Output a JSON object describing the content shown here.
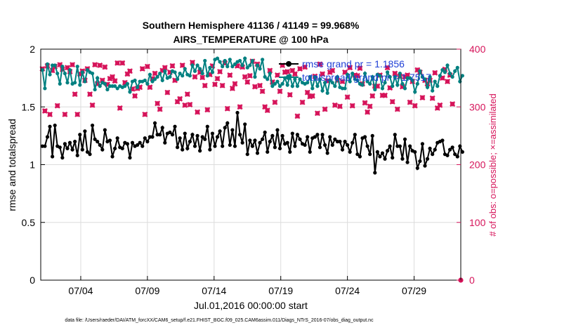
{
  "chart_data": {
    "type": "line",
    "title": "Southern Hemisphere 41136 / 41149 = 99.968%",
    "subtitle": "AIRS_TEMPERATURE @ 100 hPa",
    "xlabel": "Jul.01,2016 00:00:00 start",
    "ylabel": "rmse and totalspread",
    "y2label": "# of obs: o=possible; ×=assimilated",
    "footnote": "data file: /Users/raeder/DAI/ATM_forcXX/CAM6_setup/f.e21.FHIST_BGC.f09_025.CAM6assim.011/Diags_NTrS_2016-07/obs_diag_output.nc",
    "xlim": [
      1,
      32.5
    ],
    "ylim": [
      0,
      2
    ],
    "y2lim": [
      0,
      400
    ],
    "xticks": [
      4,
      9,
      14,
      19,
      24,
      29
    ],
    "xtick_labels": [
      "07/04",
      "07/09",
      "07/14",
      "07/19",
      "07/24",
      "07/29"
    ],
    "yticks": [
      0,
      0.5,
      1,
      1.5,
      2
    ],
    "ytick_labels": [
      "0",
      "0.5",
      "1",
      "1.5",
      "2"
    ],
    "y2ticks": [
      0,
      100,
      200,
      300,
      400
    ],
    "y2tick_labels": [
      "0",
      "100",
      "200",
      "300",
      "400"
    ],
    "grid": true,
    "legend_position": "top-right",
    "colors": {
      "rmse": "#000000",
      "spread": "#008080",
      "obs": "#d6145a",
      "legend_text": "#1f3fd6"
    },
    "series": [
      {
        "name": "rmse grand pr = 1.1856",
        "axis": "left",
        "values": [
          1.16,
          1.16,
          1.24,
          1.33,
          1.07,
          1.34,
          1.16,
          1.15,
          1.06,
          1.18,
          1.14,
          1.19,
          1.13,
          1.2,
          1.08,
          1.26,
          1.13,
          1.29,
          1.11,
          1.09,
          1.34,
          1.22,
          1.2,
          1.17,
          1.13,
          1.3,
          1.2,
          1.21,
          1.07,
          1.14,
          1.23,
          1.15,
          1.14,
          1.19,
          1.18,
          1.06,
          1.19,
          1.16,
          1.17,
          1.19,
          1.16,
          1.23,
          1.2,
          1.24,
          1.24,
          1.36,
          1.26,
          1.26,
          1.32,
          1.19,
          1.27,
          1.28,
          1.26,
          1.33,
          1.15,
          1.23,
          1.13,
          1.27,
          1.14,
          1.2,
          1.26,
          1.16,
          1.25,
          1.12,
          1.24,
          1.22,
          1.33,
          1.13,
          1.27,
          1.16,
          1.24,
          1.29,
          1.16,
          1.32,
          1.36,
          1.17,
          1.3,
          1.16,
          1.45,
          1.26,
          1.19,
          1.35,
          1.09,
          1.21,
          1.16,
          1.21,
          1.1,
          1.19,
          1.22,
          1.28,
          1.11,
          1.2,
          1.25,
          1.15,
          1.3,
          1.14,
          1.25,
          1.18,
          1.19,
          1.11,
          1.27,
          1.16,
          1.26,
          1.22,
          1.18,
          1.17,
          1.24,
          1.11,
          1.23,
          1.24,
          1.26,
          1.15,
          1.26,
          1.17,
          1.1,
          1.24,
          1.17,
          1.22,
          1.2,
          1.2,
          1.13,
          1.2,
          1.17,
          1.11,
          1.19,
          1.26,
          1.09,
          1.07,
          1.23,
          1.24,
          1.16,
          1.09,
          1.25,
          0.93,
          1.11,
          1.07,
          1.1,
          1.05,
          1.12,
          1.16,
          1.06,
          1.26,
          1.16,
          1.16,
          1.05,
          1.22,
          1.02,
          1.16,
          1.12,
          1.11,
          0.97,
          1.03,
          1.18,
          0.99,
          1.05,
          1.14,
          1.09,
          1.13,
          1.19,
          1.2,
          1.21,
          1.09,
          1.08,
          1.13,
          1.15,
          1.09,
          1.07,
          1.16,
          1.11
        ]
      },
      {
        "name": "totalspread grand pr = 1.7517",
        "axis": "left",
        "values": [
          1.82,
          1.66,
          1.87,
          1.78,
          1.86,
          1.86,
          1.79,
          1.7,
          1.85,
          1.79,
          1.71,
          1.82,
          1.7,
          1.71,
          1.85,
          1.69,
          1.8,
          1.72,
          1.82,
          1.8,
          1.79,
          1.65,
          1.75,
          1.68,
          1.71,
          1.7,
          1.65,
          1.68,
          1.68,
          1.68,
          1.66,
          1.68,
          1.67,
          1.68,
          1.7,
          1.63,
          1.72,
          1.73,
          1.67,
          1.72,
          1.72,
          1.73,
          1.7,
          1.78,
          1.72,
          1.74,
          1.76,
          1.79,
          1.73,
          1.81,
          1.75,
          1.76,
          1.81,
          1.8,
          1.74,
          1.79,
          1.77,
          1.83,
          1.78,
          1.77,
          1.86,
          1.81,
          1.86,
          1.83,
          1.79,
          1.9,
          1.77,
          1.84,
          1.8,
          1.91,
          1.92,
          1.89,
          1.85,
          1.9,
          1.85,
          1.91,
          1.85,
          1.87,
          1.89,
          1.9,
          1.86,
          1.92,
          1.84,
          1.86,
          1.9,
          1.76,
          1.86,
          1.83,
          1.91,
          1.76,
          1.74,
          1.79,
          1.68,
          1.7,
          1.72,
          1.68,
          1.7,
          1.75,
          1.69,
          1.77,
          1.68,
          1.74,
          1.68,
          1.74,
          1.71,
          1.7,
          1.71,
          1.76,
          1.66,
          1.76,
          1.68,
          1.74,
          1.64,
          1.71,
          1.62,
          1.73,
          1.71,
          1.68,
          1.76,
          1.67,
          1.66,
          1.66,
          1.78,
          1.72,
          1.79,
          1.74,
          1.73,
          1.7,
          1.69,
          1.79,
          1.72,
          1.7,
          1.76,
          1.65,
          1.78,
          1.77,
          1.66,
          1.71,
          1.8,
          1.76,
          1.68,
          1.76,
          1.69,
          1.79,
          1.7,
          1.66,
          1.75,
          1.75,
          1.73,
          1.63,
          1.7,
          1.81,
          1.76,
          1.74,
          1.67,
          1.76,
          1.64,
          1.72,
          1.68,
          1.77,
          1.82,
          1.8,
          1.86,
          1.79,
          1.76,
          1.81,
          1.84,
          1.72,
          1.77
        ]
      },
      {
        "name": "obs possible",
        "axis": "right",
        "marker": "o",
        "values": [
          366,
          293,
          371,
          287,
          363,
          370,
          302,
          373,
          365,
          287,
          368,
          361,
          373,
          322,
          287,
          357,
          362,
          346,
          366,
          322,
          303,
          373,
          340,
          372,
          346,
          369,
          339,
          349,
          352,
          345,
          376,
          298,
          376,
          342,
          357,
          362,
          331,
          319,
          332,
          334,
          366,
          287,
          370,
          334,
          349,
          358,
          306,
          296,
          363,
          368,
          325,
          360,
          371,
          346,
          309,
          314,
          372,
          303,
          322,
          304,
          377,
          352,
          291,
          360,
          351,
          337,
          295,
          356,
          371,
          339,
          349,
          361,
          337,
          376,
          297,
          355,
          332,
          340,
          371,
          300,
          369,
          352,
          343,
          354,
          379,
          335,
          374,
          337,
          327,
          300,
          294,
          363,
          343,
          308,
          355,
          327,
          372,
          360,
          361,
          321,
          363,
          357,
          284,
          366,
          308,
          369,
          325,
          318,
          319,
          353,
          289,
          374,
          357,
          296,
          345,
          360,
          363,
          303,
          346,
          301,
          344,
          360,
          317,
          368,
          302,
          355,
          354,
          367,
          340,
          307,
          291,
          301,
          319,
          336,
          336,
          355,
          320,
          320,
          368,
          333,
          309,
          358,
          296,
          353,
          335,
          352,
          355,
          308,
          344,
          302,
          364,
          360,
          316,
          346,
          340,
          346,
          315,
          359,
          298,
          303,
          350,
          365,
          344,
          355,
          305
        ]
      },
      {
        "name": "obs assimilated",
        "axis": "right",
        "marker": "x",
        "values": [
          366,
          293,
          371,
          287,
          363,
          370,
          302,
          373,
          365,
          287,
          368,
          361,
          373,
          322,
          287,
          357,
          362,
          346,
          366,
          322,
          303,
          373,
          340,
          372,
          346,
          369,
          339,
          349,
          352,
          345,
          376,
          298,
          376,
          342,
          357,
          362,
          331,
          319,
          332,
          334,
          366,
          287,
          370,
          334,
          349,
          358,
          306,
          296,
          363,
          368,
          325,
          360,
          371,
          346,
          309,
          314,
          372,
          303,
          322,
          304,
          377,
          352,
          291,
          360,
          351,
          337,
          295,
          356,
          371,
          339,
          349,
          361,
          337,
          376,
          297,
          355,
          332,
          340,
          371,
          300,
          369,
          352,
          343,
          354,
          379,
          335,
          374,
          337,
          327,
          300,
          294,
          363,
          343,
          308,
          355,
          327,
          372,
          360,
          361,
          321,
          363,
          357,
          284,
          366,
          308,
          369,
          325,
          318,
          319,
          353,
          289,
          374,
          357,
          296,
          345,
          360,
          363,
          303,
          346,
          301,
          344,
          360,
          317,
          368,
          302,
          355,
          354,
          367,
          340,
          307,
          291,
          301,
          319,
          336,
          336,
          355,
          320,
          320,
          368,
          333,
          309,
          358,
          296,
          353,
          335,
          352,
          355,
          308,
          344,
          302,
          364,
          360,
          316,
          346,
          340,
          346,
          315,
          359,
          298,
          303,
          350,
          365,
          344,
          355,
          305
        ]
      }
    ],
    "extra_points": [
      {
        "series": "obs possible",
        "x": 32.5,
        "y": 0
      }
    ],
    "x_start": 1.125,
    "x_step": 0.1875
  }
}
